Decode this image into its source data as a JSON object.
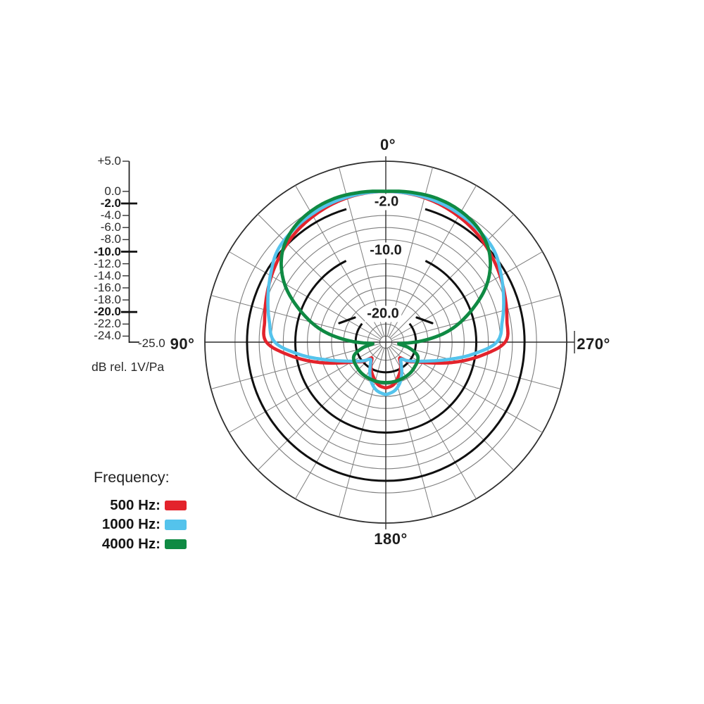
{
  "figure": {
    "background": "#ffffff"
  },
  "scale_bar": {
    "caption": "dB rel. 1V/Pa",
    "end_label": "-25.0",
    "ticks": [
      {
        "label": "+5.0",
        "db": 5,
        "bold": false
      },
      {
        "label": "0.0",
        "db": 0,
        "bold": false
      },
      {
        "label": "-2.0",
        "db": -2,
        "bold": true
      },
      {
        "label": "-4.0",
        "db": -4,
        "bold": false
      },
      {
        "label": "-6.0",
        "db": -6,
        "bold": false
      },
      {
        "label": "-8.0",
        "db": -8,
        "bold": false
      },
      {
        "label": "-10.0",
        "db": -10,
        "bold": true
      },
      {
        "label": "-12.0",
        "db": -12,
        "bold": false
      },
      {
        "label": "-14.0",
        "db": -14,
        "bold": false
      },
      {
        "label": "-16.0",
        "db": -16,
        "bold": false
      },
      {
        "label": "-18.0",
        "db": -18,
        "bold": false
      },
      {
        "label": "-20.0",
        "db": -20,
        "bold": true
      },
      {
        "label": "-22.0",
        "db": -22,
        "bold": false
      },
      {
        "label": "-24.0",
        "db": -24,
        "bold": false
      }
    ]
  },
  "chart_data": {
    "type": "line",
    "subtype": "polar_directivity",
    "title": "",
    "angle_unit": "deg",
    "angular_axis": {
      "spoke_step_deg": 15,
      "label_0": "0°",
      "label_90": "90°",
      "label_180": "180°",
      "label_270": "270°"
    },
    "radial_axis": {
      "unit_label": "dB rel. 1V/Pa",
      "min_db": -25,
      "max_db": 5,
      "thin_circles_db": [
        5,
        0,
        -4,
        -6,
        -8,
        -12,
        -14,
        -16,
        -18,
        -22,
        -24
      ],
      "bold_circles_db": [
        -2,
        -10,
        -20
      ],
      "ring_labels": [
        {
          "text": "-2.0",
          "db": -2
        },
        {
          "text": "-10.0",
          "db": -10
        },
        {
          "text": "-20.0",
          "db": -20
        }
      ]
    },
    "series": [
      {
        "name": "500 Hz",
        "color": "#e3232c",
        "mirror_symmetric": true,
        "angles_deg": [
          0,
          10,
          20,
          30,
          40,
          50,
          60,
          70,
          80,
          90,
          98,
          106,
          114,
          122,
          130,
          138,
          146,
          154,
          162,
          170,
          180
        ],
        "values_db": [
          0,
          -0.1,
          -0.4,
          -0.9,
          -1.5,
          -2.3,
          -3.1,
          -3.9,
          -4.6,
          -5.2,
          -9.0,
          -13.0,
          -16.5,
          -18.8,
          -20.0,
          -21.5,
          -20.6,
          -19.6,
          -18.7,
          -17.8,
          -17.4
        ]
      },
      {
        "name": "1000 Hz",
        "color": "#54c3ec",
        "mirror_symmetric": true,
        "angles_deg": [
          0,
          10,
          20,
          30,
          40,
          50,
          60,
          70,
          80,
          90,
          98,
          106,
          114,
          122,
          130,
          138,
          146,
          154,
          162,
          170,
          180
        ],
        "values_db": [
          0,
          -0.05,
          -0.2,
          -0.5,
          -0.9,
          -1.5,
          -2.9,
          -4.2,
          -5.4,
          -6.6,
          -10.5,
          -14.5,
          -17.3,
          -19.0,
          -20.2,
          -21.2,
          -20.4,
          -19.0,
          -17.7,
          -16.8,
          -16.3
        ]
      },
      {
        "name": "4000 Hz",
        "color": "#0f8a43",
        "mirror_symmetric": true,
        "angles_deg": [
          0,
          10,
          20,
          30,
          40,
          50,
          60,
          70,
          80,
          88,
          96,
          104,
          112,
          120,
          130,
          140,
          150,
          160,
          170,
          180
        ],
        "values_db": [
          0,
          0.2,
          0.3,
          0,
          -0.8,
          -2.5,
          -5.6,
          -10.0,
          -14.5,
          -19.0,
          -22.8,
          -21.0,
          -19.4,
          -18.9,
          -18.7,
          -18.5,
          -18.4,
          -18.35,
          -18.3,
          -18.3
        ]
      }
    ],
    "legend": {
      "title": "Frequency:",
      "entries": [
        {
          "label": "500 Hz:",
          "color": "#e3232c"
        },
        {
          "label": "1000 Hz:",
          "color": "#54c3ec"
        },
        {
          "label": "4000 Hz:",
          "color": "#0f8a43"
        }
      ]
    }
  }
}
